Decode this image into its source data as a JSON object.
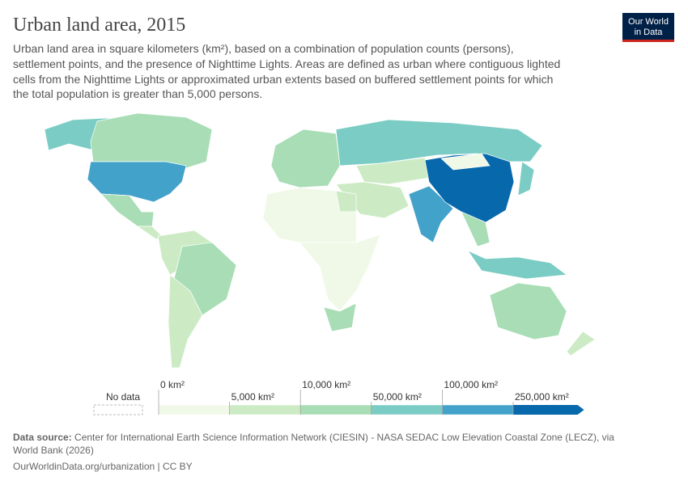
{
  "header": {
    "title": "Urban land area, 2015",
    "subtitle": [
      "Urban land area in square kilometers (km²), based on a combination of population counts (persons),",
      "settlement points, and the presence of Nighttime Lights. Areas are defined as urban where contiguous lighted",
      "cells from the Nighttime Lights or approximated urban extents based on buffered settlement points for which",
      "the total population is greater than 5,000 persons."
    ],
    "logo": [
      "Our World",
      "in Data"
    ]
  },
  "legend": {
    "no_data": "No data",
    "bins": [
      {
        "label": "0 km²",
        "color": "#f0f9e8"
      },
      {
        "label": "5,000 km²",
        "color": "#ccebc5"
      },
      {
        "label": "10,000 km²",
        "color": "#a8ddb5"
      },
      {
        "label": "50,000 km²",
        "color": "#7bccc4"
      },
      {
        "label": "100,000 km²",
        "color": "#43a2ca"
      },
      {
        "label": "250,000 km²",
        "color": "#0868ac"
      }
    ]
  },
  "footer": {
    "source_label": "Data source:",
    "source_text": "Center for International Earth Science Information Network (CIESIN) - NASA SEDAC Low Elevation Coastal Zone (LECZ), via",
    "source_text_2": "World Bank (2026)",
    "url": "OurWorldinData.org/urbanization | CC BY"
  }
}
